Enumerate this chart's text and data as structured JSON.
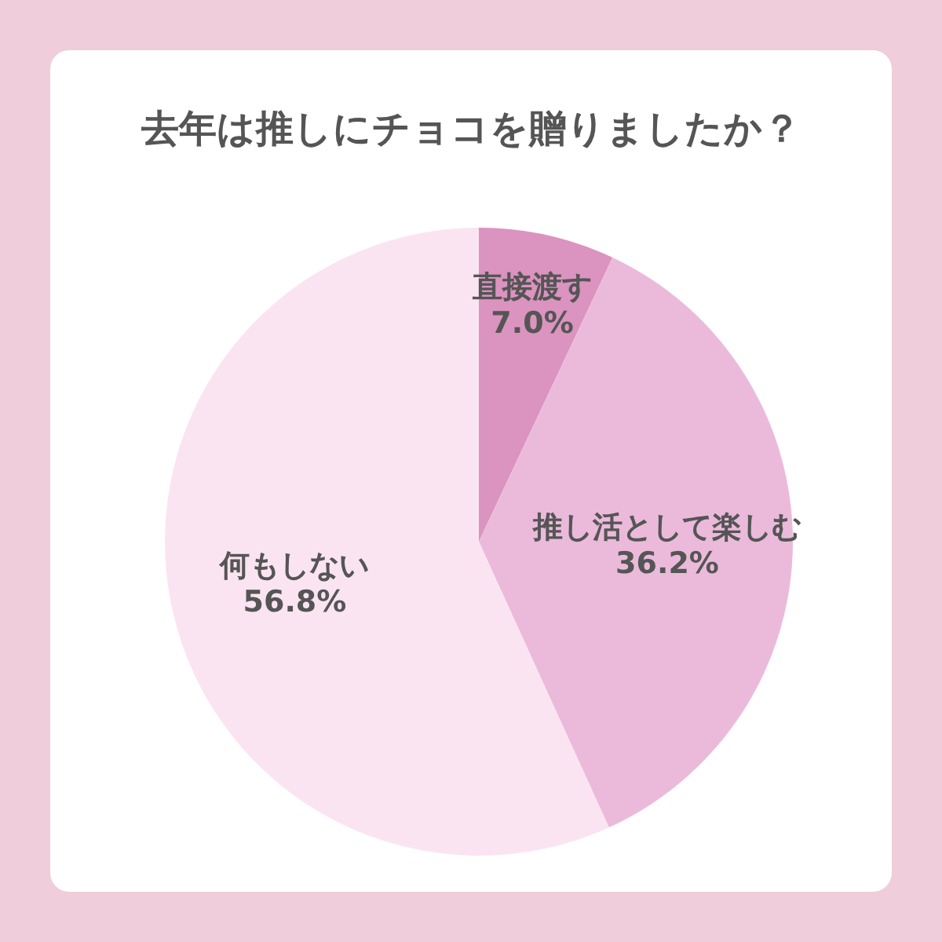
{
  "chart_data": {
    "type": "pie",
    "title": "去年は推しにチョコを贈りましたか？",
    "categories": [
      "直接渡す",
      "推し活として楽しむ",
      "何もしない"
    ],
    "values": [
      7.0,
      36.2,
      56.8
    ],
    "value_labels": [
      "7.0%",
      "36.2%",
      "56.8%"
    ],
    "colors": [
      "#db93bf",
      "#ebbadb",
      "#fbe4f1"
    ],
    "legend": false
  }
}
